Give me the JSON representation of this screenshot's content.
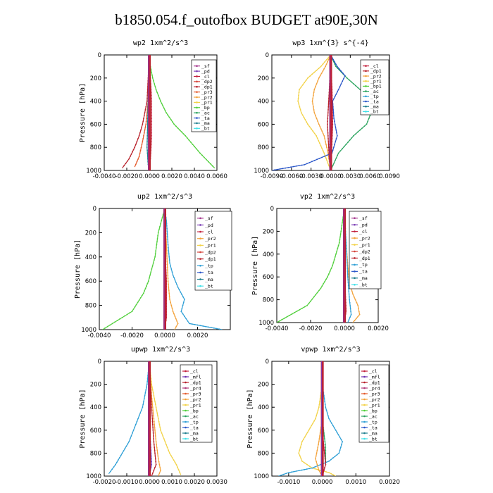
{
  "title": "b1850.054.f_outofbox  BUDGET at90E,30N",
  "colors": {
    "sf": "#a63a8f",
    "pd": "#7b3fb5",
    "cl": "#c21f3a",
    "dp2": "#d6443a",
    "dp1": "#b8202a",
    "pr3": "#e45a2c",
    "pr2": "#f3a23a",
    "pr1": "#f2d247",
    "bp": "#4fcf3a",
    "ac": "#2aa35e",
    "tp": "#2e9fd6",
    "ta": "#2a56c9",
    "ma": "#1f7f8f",
    "bt": "#40e0e8",
    "mfl": "#6a2fb0",
    "pr4": "#b03a7a",
    "bd": "#1a1a1a"
  },
  "chart_data": [
    {
      "type": "line",
      "title": "wp2  1xm^2/s^3",
      "ylabel": "Pressure [hPa]",
      "xlim": [
        -0.004,
        0.006
      ],
      "ylim": [
        1000,
        0
      ],
      "xticks": [
        "-0.0040",
        "-0.0020",
        "0.0000",
        "0.0020",
        "0.0040",
        "0.0060"
      ],
      "yticks": [
        "0",
        "200",
        "400",
        "600",
        "800",
        "1000"
      ],
      "legend": [
        "_sf",
        "_pd",
        "_cl",
        "_dp2",
        "_dp1",
        "_pr3",
        "_pr2",
        "_pr1",
        "_bp",
        "_ac",
        "_ta",
        "_ma",
        "_bt"
      ],
      "series": [
        {
          "name": "_bp",
          "color_key": "bp",
          "x": [
            0.0,
            0.0001,
            0.0003,
            0.0006,
            0.001,
            0.0015,
            0.0022,
            0.0032,
            0.0045,
            0.0058
          ],
          "y": [
            0,
            100,
            200,
            300,
            400,
            500,
            600,
            700,
            850,
            980
          ]
        },
        {
          "name": "_dp1",
          "color_key": "dp1",
          "x": [
            0.0,
            -0.0001,
            -0.0002,
            -0.0004,
            -0.0006,
            -0.0009,
            -0.0013,
            -0.0018,
            -0.0024
          ],
          "y": [
            0,
            200,
            400,
            500,
            600,
            700,
            800,
            900,
            980
          ]
        },
        {
          "name": "_pr3",
          "color_key": "pr3",
          "x": [
            0.0,
            -0.0001,
            -0.0003,
            -0.0006,
            -0.0009,
            -0.0013
          ],
          "y": [
            0,
            400,
            600,
            750,
            880,
            970
          ]
        },
        {
          "name": "_cl",
          "color_key": "cl",
          "x": [
            0.0,
            0.0001,
            0.0002,
            0.0002,
            0.0001,
            0.0
          ],
          "y": [
            0,
            200,
            400,
            700,
            900,
            1000
          ]
        },
        {
          "name": "_pd",
          "color_key": "pd",
          "x": [
            0.0,
            0.0,
            -0.0001,
            0.0,
            0.0
          ],
          "y": [
            0,
            300,
            600,
            850,
            1000
          ]
        },
        {
          "name": "_ma",
          "color_key": "ma",
          "x": [
            0.0,
            -0.0001,
            -0.0002,
            -0.0001,
            0.0
          ],
          "y": [
            0,
            400,
            800,
            950,
            1000
          ]
        },
        {
          "name": "_bt",
          "color_key": "bt",
          "x": [
            0.0,
            0.0,
            0.0,
            0.0
          ],
          "y": [
            0,
            400,
            800,
            1000
          ]
        }
      ]
    },
    {
      "type": "line",
      "title": "wp3  1xm^{3} s^{-4}",
      "ylabel": "",
      "xlim": [
        -0.009,
        0.009
      ],
      "ylim": [
        1000,
        0
      ],
      "xticks": [
        "-0.0090",
        "-0.0060",
        "-0.0030",
        "0.0000",
        "0.0030",
        "0.0060",
        "0.0090"
      ],
      "yticks": [
        "0",
        "200",
        "400",
        "600",
        "800",
        "1000"
      ],
      "legend": [
        "_cl",
        "_dp1",
        "_pr2",
        "_pr1",
        "_bp1",
        "_ac",
        "_tp",
        "_ta",
        "_ma",
        "_bt"
      ],
      "series": [
        {
          "name": "_pr1",
          "color_key": "pr1",
          "x": [
            0.0,
            -0.0015,
            -0.0035,
            -0.0048,
            -0.005,
            -0.0045,
            -0.0035,
            -0.0022,
            -0.001,
            0.0
          ],
          "y": [
            0,
            100,
            200,
            300,
            400,
            500,
            600,
            700,
            850,
            1000
          ]
        },
        {
          "name": "_pr2",
          "color_key": "pr2",
          "x": [
            0.0,
            -0.0008,
            -0.0018,
            -0.0025,
            -0.0028,
            -0.0025,
            -0.0018,
            -0.001,
            -0.0004,
            0.0
          ],
          "y": [
            0,
            100,
            200,
            300,
            400,
            500,
            600,
            700,
            850,
            1000
          ]
        },
        {
          "name": "_ac",
          "color_key": "ac",
          "x": [
            0.0,
            0.0008,
            0.0025,
            0.0045,
            0.0058,
            0.0062,
            0.0055,
            0.0035,
            0.0012,
            0.0
          ],
          "y": [
            0,
            100,
            200,
            300,
            400,
            500,
            600,
            700,
            850,
            1000
          ]
        },
        {
          "name": "_ta",
          "color_key": "ta",
          "x": [
            0.0,
            0.001,
            0.0022,
            0.0012,
            0.0003,
            0.0005,
            0.001,
            0.0002,
            -0.004,
            -0.009
          ],
          "y": [
            0,
            100,
            180,
            300,
            400,
            550,
            700,
            850,
            950,
            1000
          ]
        },
        {
          "name": "_dp1",
          "color_key": "dp1",
          "x": [
            0.0,
            -0.0002,
            -0.0005,
            -0.0002,
            0.0
          ],
          "y": [
            0,
            300,
            600,
            900,
            1000
          ]
        },
        {
          "name": "_cl",
          "color_key": "cl",
          "x": [
            0.0,
            0.0002,
            0.0003,
            0.0001,
            0.0
          ],
          "y": [
            0,
            300,
            600,
            900,
            1000
          ]
        },
        {
          "name": "_bt",
          "color_key": "bt",
          "x": [
            0.0,
            0.0,
            0.0
          ],
          "y": [
            0,
            500,
            1000
          ]
        }
      ]
    },
    {
      "type": "line",
      "title": "up2  1xm^2/s^3",
      "ylabel": "Pressure [hPa]",
      "xlim": [
        -0.004,
        0.004
      ],
      "ylim": [
        1000,
        0
      ],
      "xticks": [
        "-0.0040",
        "-0.0020",
        "0.0000",
        "0.0020"
      ],
      "yticks": [
        "0",
        "200",
        "400",
        "600",
        "800",
        "1000"
      ],
      "legend": [
        "_sf",
        "_pd",
        "_cl",
        "_pr2",
        "_pr1",
        "_dp2",
        "_dp1",
        "_tp",
        "_ta",
        "_ma",
        "_bt"
      ],
      "series": [
        {
          "name": "_dp1",
          "color_key": "bp",
          "x": [
            0.0,
            -0.0002,
            -0.0004,
            -0.0005,
            -0.0006,
            -0.0008,
            -0.001,
            -0.0013,
            -0.002,
            -0.0038
          ],
          "y": [
            0,
            100,
            200,
            300,
            400,
            500,
            600,
            700,
            850,
            1000
          ]
        },
        {
          "name": "_ta",
          "color_key": "tp",
          "x": [
            0.0,
            0.0001,
            0.0002,
            0.0003,
            0.0005,
            0.0008,
            0.0012,
            0.001,
            0.0015,
            0.0035
          ],
          "y": [
            0,
            100,
            300,
            450,
            550,
            650,
            750,
            850,
            950,
            1000
          ]
        },
        {
          "name": "_pr2",
          "color_key": "pr2",
          "x": [
            0.0,
            0.0001,
            0.0002,
            0.0003,
            0.0005,
            0.0008,
            0.0006
          ],
          "y": [
            0,
            300,
            600,
            750,
            850,
            950,
            1000
          ]
        },
        {
          "name": "_cl",
          "color_key": "cl",
          "x": [
            0.0,
            0.0,
            0.0001,
            0.0001,
            0.0
          ],
          "y": [
            0,
            300,
            600,
            900,
            1000
          ]
        },
        {
          "name": "_bt",
          "color_key": "bt",
          "x": [
            0.0,
            0.0,
            0.0
          ],
          "y": [
            0,
            500,
            1000
          ]
        }
      ]
    },
    {
      "type": "line",
      "title": "vp2  1xm^2/s^3",
      "ylabel": "Pressure [hPa]",
      "xlim": [
        -0.004,
        0.002
      ],
      "ylim": [
        1000,
        0
      ],
      "xticks": [
        "-0.0040",
        "-0.0020",
        "0.0000",
        "0.0020"
      ],
      "yticks": [
        "0",
        "200",
        "400",
        "600",
        "800",
        "1000"
      ],
      "legend": [
        "_sf",
        "_pd",
        "_cl",
        "_pr2",
        "_pr1",
        "_dp2",
        "_dp1",
        "_tp",
        "_ta",
        "_ma",
        "_bt"
      ],
      "series": [
        {
          "name": "_dp1",
          "color_key": "bp",
          "x": [
            0.0,
            -0.0001,
            -0.0002,
            -0.0003,
            -0.0005,
            -0.0007,
            -0.001,
            -0.0014,
            -0.0022,
            -0.004
          ],
          "y": [
            0,
            100,
            200,
            300,
            400,
            500,
            600,
            700,
            850,
            1000
          ]
        },
        {
          "name": "_pr2",
          "color_key": "pr2",
          "x": [
            0.0,
            0.0001,
            0.0002,
            0.0003,
            0.0005,
            0.0008,
            0.0009,
            0.0005
          ],
          "y": [
            0,
            300,
            500,
            650,
            750,
            850,
            930,
            1000
          ]
        },
        {
          "name": "_ta",
          "color_key": "tp",
          "x": [
            0.0,
            0.0001,
            0.0002,
            0.0003,
            0.0004,
            0.0002
          ],
          "y": [
            0,
            300,
            600,
            800,
            930,
            1000
          ]
        },
        {
          "name": "_cl",
          "color_key": "cl",
          "x": [
            0.0,
            0.0,
            0.0001,
            0.0
          ],
          "y": [
            0,
            500,
            900,
            1000
          ]
        },
        {
          "name": "_bt",
          "color_key": "bt",
          "x": [
            0.0,
            0.0,
            0.0
          ],
          "y": [
            0,
            500,
            1000
          ]
        }
      ]
    },
    {
      "type": "line",
      "title": "upwp  1xm^2/s^3",
      "ylabel": "Pressure [hPa]",
      "xlim": [
        -0.002,
        0.003
      ],
      "ylim": [
        1000,
        0
      ],
      "xticks": [
        "-0.0020",
        "-0.0010",
        "0.0000",
        "0.0010",
        "0.0020",
        "0.0030"
      ],
      "yticks": [
        "0",
        "200",
        "400",
        "600",
        "800",
        "1000"
      ],
      "legend": [
        "_cl",
        "_mfl",
        "_dp1",
        "_pr4",
        "_pr3",
        "_pr2",
        "_pr1",
        "_bp",
        "_ac",
        "_tp",
        "_ta",
        "_ma",
        "_bt"
      ],
      "series": [
        {
          "name": "_ta",
          "color_key": "tp",
          "x": [
            0.0,
            -0.0001,
            -0.0002,
            -0.0003,
            -0.0005,
            -0.0007,
            -0.0009,
            -0.0012,
            -0.0015,
            -0.0018
          ],
          "y": [
            0,
            200,
            300,
            400,
            500,
            600,
            700,
            800,
            900,
            980
          ]
        },
        {
          "name": "_pr1",
          "color_key": "pr1",
          "x": [
            0.0,
            0.0001,
            0.0002,
            0.0003,
            0.0004,
            0.0005,
            0.0007,
            0.0009,
            0.0012,
            0.0014
          ],
          "y": [
            0,
            200,
            300,
            400,
            500,
            600,
            700,
            800,
            900,
            990
          ]
        },
        {
          "name": "_pr2",
          "color_key": "pr2",
          "x": [
            0.0,
            0.0001,
            0.0002,
            0.0003,
            0.0004,
            0.0005,
            0.0004
          ],
          "y": [
            0,
            300,
            500,
            700,
            850,
            950,
            1000
          ]
        },
        {
          "name": "_dp1",
          "color_key": "dp1",
          "x": [
            0.0,
            0.0001,
            0.0002,
            0.0003,
            0.0001
          ],
          "y": [
            0,
            400,
            700,
            900,
            1000
          ]
        },
        {
          "name": "_mfl",
          "color_key": "mfl",
          "x": [
            0.0,
            0.0,
            0.0001,
            0.0
          ],
          "y": [
            0,
            500,
            900,
            1000
          ]
        },
        {
          "name": "_bt",
          "color_key": "bt",
          "x": [
            0.0,
            0.0,
            0.0
          ],
          "y": [
            0,
            500,
            1000
          ]
        }
      ]
    },
    {
      "type": "line",
      "title": "vpwp  1xm^2/s^3",
      "ylabel": "Pressure [hPa]",
      "xlim": [
        -0.0015,
        0.002
      ],
      "ylim": [
        1000,
        0
      ],
      "xticks": [
        "-0.0010",
        "0.0000",
        "0.0010",
        "0.0020"
      ],
      "yticks": [
        "0",
        "200",
        "400",
        "600",
        "800",
        "1000"
      ],
      "legend": [
        "_cl",
        "_mfl",
        "_dp1",
        "_pr4",
        "_pr3",
        "_pr2",
        "_pr1",
        "_bp",
        "_ac",
        "_tp",
        "_ta",
        "_ma",
        "_bt"
      ],
      "series": [
        {
          "name": "_pr1",
          "color_key": "pr1",
          "x": [
            0.0,
            0.0,
            -0.0001,
            -0.0002,
            -0.0004,
            -0.0006,
            -0.0007,
            -0.0006,
            -0.0003,
            0.0002,
            0.0004
          ],
          "y": [
            0,
            200,
            400,
            500,
            600,
            700,
            800,
            870,
            930,
            970,
            1000
          ]
        },
        {
          "name": "_ta",
          "color_key": "tp",
          "x": [
            0.0,
            0.0,
            0.0001,
            0.0002,
            0.0004,
            0.0006,
            0.0005,
            0.0002,
            -0.0003,
            -0.001,
            -0.0013
          ],
          "y": [
            0,
            200,
            400,
            500,
            600,
            700,
            800,
            870,
            930,
            970,
            1000
          ]
        },
        {
          "name": "_pr2",
          "color_key": "pr2",
          "x": [
            0.0,
            0.0,
            -0.0001,
            -0.0002,
            -0.0001,
            0.0
          ],
          "y": [
            0,
            500,
            700,
            850,
            950,
            1000
          ]
        },
        {
          "name": "_ac",
          "color_key": "ac",
          "x": [
            0.0,
            0.0,
            0.0001,
            0.0001,
            0.0
          ],
          "y": [
            0,
            500,
            750,
            900,
            1000
          ]
        },
        {
          "name": "_mfl",
          "color_key": "mfl",
          "x": [
            0.0,
            0.0,
            0.0
          ],
          "y": [
            0,
            500,
            1000
          ]
        },
        {
          "name": "_cl",
          "color_key": "cl",
          "x": [
            0.0,
            0.0,
            0.0001,
            0.0
          ],
          "y": [
            0,
            600,
            900,
            1000
          ]
        }
      ]
    }
  ]
}
